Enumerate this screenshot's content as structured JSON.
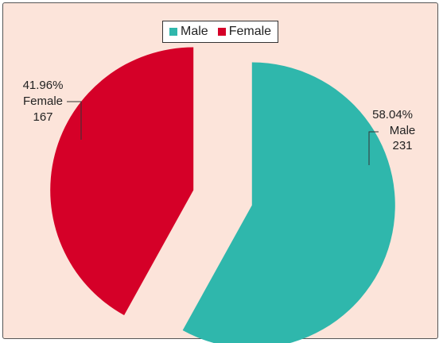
{
  "chart_data": {
    "type": "pie",
    "exploded": true,
    "slices": [
      {
        "name": "Male",
        "value": 231,
        "percent": "58.04%",
        "color": "#2fb7ac"
      },
      {
        "name": "Female",
        "value": 167,
        "percent": "41.96%",
        "color": "#d50028"
      }
    ],
    "legend": {
      "placement": "top-center",
      "items": [
        "Male",
        "Female"
      ]
    },
    "labels": [
      {
        "percent": "58.04%",
        "name": "Male",
        "value": "231"
      },
      {
        "percent": "41.96%",
        "name": "Female",
        "value": "167"
      }
    ],
    "background_color": "#fce4da"
  }
}
